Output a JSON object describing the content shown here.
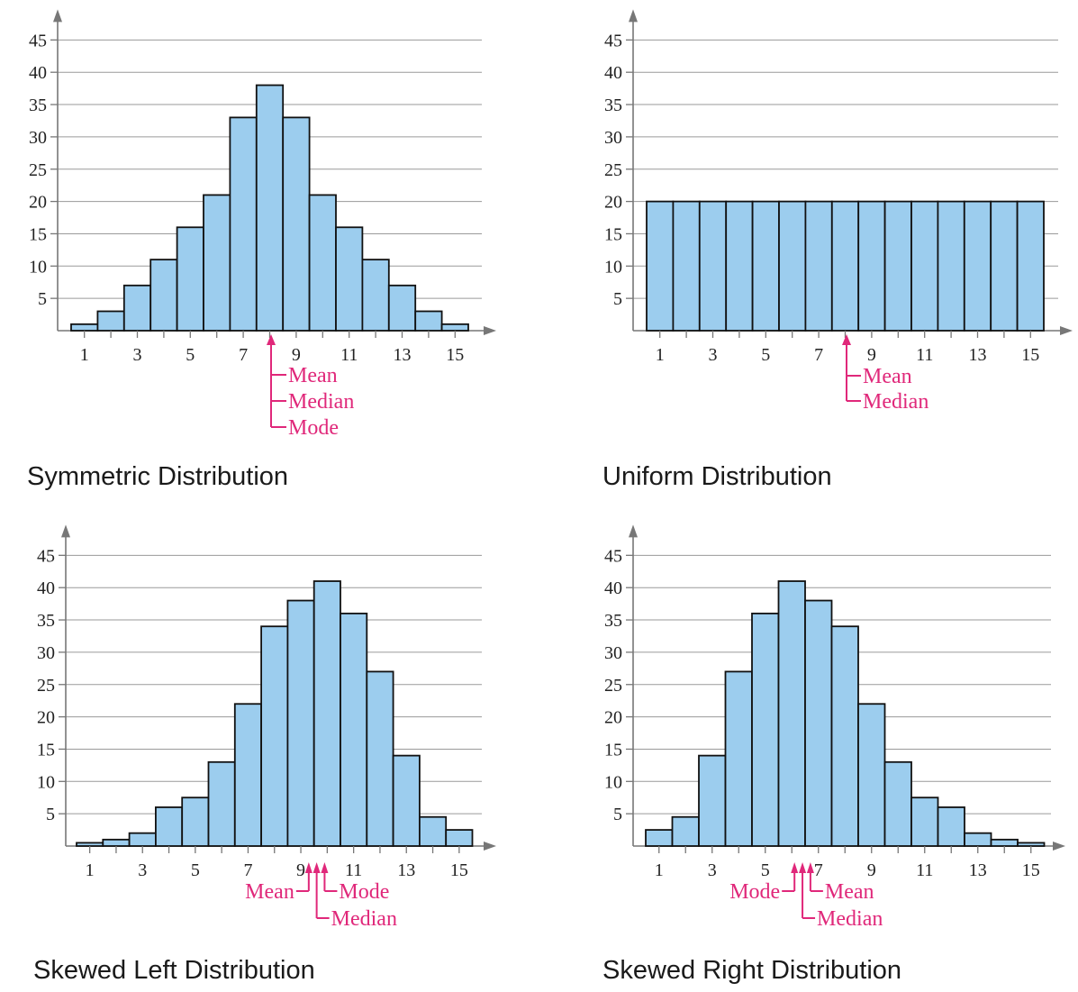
{
  "chart_data": [
    {
      "type": "bar",
      "title": "Symmetric Distribution",
      "categories": [
        1,
        2,
        3,
        4,
        5,
        6,
        7,
        8,
        9,
        10,
        11,
        12,
        13,
        14,
        15
      ],
      "x_tick_labels": [
        "1",
        "3",
        "5",
        "7",
        "9",
        "11",
        "13",
        "15"
      ],
      "values": [
        1,
        3,
        7,
        11,
        16,
        21,
        33,
        38,
        33,
        21,
        16,
        11,
        7,
        3,
        1
      ],
      "ylim": [
        0,
        45
      ],
      "y_ticks": [
        5,
        10,
        15,
        20,
        25,
        30,
        35,
        40,
        45
      ],
      "grid": true,
      "annotations": [
        {
          "label": "Mean",
          "x": 8
        },
        {
          "label": "Median",
          "x": 8
        },
        {
          "label": "Mode",
          "x": 8
        }
      ]
    },
    {
      "type": "bar",
      "title": "Uniform Distribution",
      "categories": [
        1,
        2,
        3,
        4,
        5,
        6,
        7,
        8,
        9,
        10,
        11,
        12,
        13,
        14,
        15
      ],
      "x_tick_labels": [
        "1",
        "3",
        "5",
        "7",
        "9",
        "11",
        "13",
        "15"
      ],
      "values": [
        20,
        20,
        20,
        20,
        20,
        20,
        20,
        20,
        20,
        20,
        20,
        20,
        20,
        20,
        20
      ],
      "ylim": [
        0,
        45
      ],
      "y_ticks": [
        5,
        10,
        15,
        20,
        25,
        30,
        35,
        40,
        45
      ],
      "grid": true,
      "annotations": [
        {
          "label": "Mean",
          "x": 8
        },
        {
          "label": "Median",
          "x": 8
        }
      ]
    },
    {
      "type": "bar",
      "title": "Skewed Left Distribution",
      "categories": [
        1,
        2,
        3,
        4,
        5,
        6,
        7,
        8,
        9,
        10,
        11,
        12,
        13,
        14,
        15
      ],
      "x_tick_labels": [
        "1",
        "3",
        "5",
        "7",
        "9",
        "11",
        "13",
        "15"
      ],
      "values": [
        0.5,
        1,
        2,
        6,
        7.5,
        13,
        22,
        34,
        38,
        41,
        36,
        27,
        14,
        4.5,
        2.5
      ],
      "ylim": [
        0,
        45
      ],
      "y_ticks": [
        5,
        10,
        15,
        20,
        25,
        30,
        35,
        40,
        45
      ],
      "grid": true,
      "annotations": [
        {
          "label": "Mean",
          "x": 9.3
        },
        {
          "label": "Median",
          "x": 9.6
        },
        {
          "label": "Mode",
          "x": 9.9
        }
      ]
    },
    {
      "type": "bar",
      "title": "Skewed Right Distribution",
      "categories": [
        1,
        2,
        3,
        4,
        5,
        6,
        7,
        8,
        9,
        10,
        11,
        12,
        13,
        14,
        15
      ],
      "x_tick_labels": [
        "1",
        "3",
        "5",
        "7",
        "9",
        "11",
        "13",
        "15"
      ],
      "values": [
        2.5,
        4.5,
        14,
        27,
        36,
        41,
        38,
        34,
        22,
        13,
        7.5,
        6,
        2,
        1,
        0.5
      ],
      "ylim": [
        0,
        45
      ],
      "y_ticks": [
        5,
        10,
        15,
        20,
        25,
        30,
        35,
        40,
        45
      ],
      "grid": true,
      "annotations": [
        {
          "label": "Mode",
          "x": 6.1
        },
        {
          "label": "Median",
          "x": 6.4
        },
        {
          "label": "Mean",
          "x": 6.7
        }
      ]
    }
  ],
  "colors": {
    "bar_fill": "#9ccdee",
    "bar_stroke": "#111111",
    "annotation": "#e0287a",
    "grid": "#9a9a9a"
  }
}
